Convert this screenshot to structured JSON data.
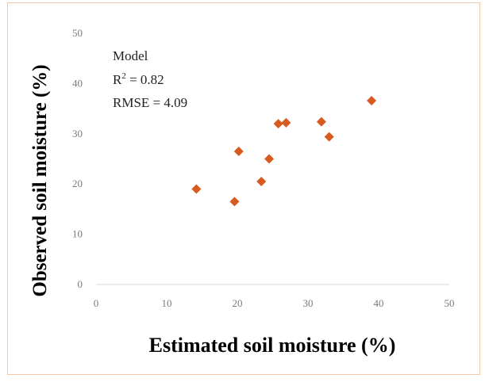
{
  "chart_data": {
    "type": "scatter",
    "title": "",
    "xlabel": "Estimated soil moisture (%)",
    "ylabel": "Observed soil moisture (%)",
    "xlim": [
      0,
      50
    ],
    "ylim": [
      0,
      50
    ],
    "xticks": [
      0,
      10,
      20,
      30,
      40,
      50
    ],
    "yticks": [
      0,
      10,
      20,
      30,
      40,
      50
    ],
    "grid": false,
    "marker_color": "#d75a1e",
    "annotations": {
      "model": "Model",
      "r2_prefix": "R",
      "r2_sup": "2",
      "r2_value": " = 0.82",
      "rmse": "RMSE = 4.09"
    },
    "points": [
      {
        "x": 14.2,
        "y": 19.0
      },
      {
        "x": 19.6,
        "y": 16.5
      },
      {
        "x": 20.2,
        "y": 26.5
      },
      {
        "x": 23.4,
        "y": 20.5
      },
      {
        "x": 24.5,
        "y": 25.0
      },
      {
        "x": 25.8,
        "y": 32.0
      },
      {
        "x": 26.9,
        "y": 32.2
      },
      {
        "x": 31.9,
        "y": 32.4
      },
      {
        "x": 33.0,
        "y": 29.4
      },
      {
        "x": 39.0,
        "y": 36.6
      }
    ]
  }
}
